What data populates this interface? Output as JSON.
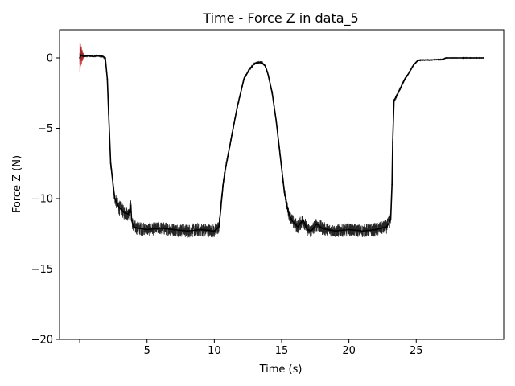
{
  "chart_data": {
    "type": "line",
    "title": "Time - Force Z in data_5",
    "xlabel": "Time (s)",
    "ylabel": "Force Z (N)",
    "xlim": [
      -1.5,
      31.5
    ],
    "ylim": [
      -20,
      2
    ],
    "xticks": [
      0,
      5,
      10,
      15,
      20,
      25
    ],
    "xtick_labels": [
      "",
      "5",
      "10",
      "15",
      "20",
      "25"
    ],
    "yticks": [
      0,
      -5,
      -10,
      -15,
      -20
    ],
    "ytick_labels": [
      "0",
      "−5",
      "−10",
      "−15",
      "−20"
    ],
    "grid": false,
    "series": [
      {
        "color": "#000000",
        "marker_color": "#d62728",
        "x": [
          0.0,
          0.1,
          0.3,
          0.6,
          1.0,
          1.4,
          1.7,
          1.9,
          2.05,
          2.15,
          2.3,
          2.6,
          2.9,
          3.3,
          3.6,
          3.8,
          3.85,
          4.0,
          4.3,
          5.0,
          6.0,
          7.0,
          8.0,
          9.0,
          10.0,
          10.35,
          10.5,
          10.65,
          10.8,
          11.0,
          11.3,
          11.7,
          12.2,
          12.6,
          13.0,
          13.4,
          13.6,
          13.8,
          14.0,
          14.3,
          14.6,
          14.9,
          15.2,
          15.5,
          15.8,
          16.2,
          16.6,
          16.9,
          17.2,
          17.6,
          18.0,
          18.4,
          19.0,
          20.0,
          21.0,
          22.0,
          22.8,
          23.1,
          23.2,
          23.25,
          23.35,
          23.5,
          23.8,
          24.1,
          24.5,
          24.8,
          25.1,
          25.3,
          25.6,
          26.0,
          26.5,
          27.0,
          27.2,
          27.6,
          28.5,
          29.0,
          30.0
        ],
        "y": [
          0.0,
          0.2,
          0.1,
          0.15,
          0.1,
          0.15,
          0.1,
          0.0,
          -1.5,
          -4.0,
          -7.5,
          -10.0,
          -10.6,
          -11.0,
          -11.1,
          -10.5,
          -11.5,
          -12.0,
          -12.1,
          -12.2,
          -12.1,
          -12.2,
          -12.3,
          -12.2,
          -12.3,
          -12.0,
          -10.5,
          -9.0,
          -8.0,
          -7.0,
          -5.5,
          -3.5,
          -1.5,
          -0.8,
          -0.4,
          -0.3,
          -0.4,
          -0.6,
          -1.2,
          -2.5,
          -4.5,
          -7.0,
          -9.5,
          -11.0,
          -11.6,
          -12.0,
          -11.5,
          -12.2,
          -12.3,
          -11.8,
          -12.1,
          -12.2,
          -12.3,
          -12.2,
          -12.3,
          -12.2,
          -12.0,
          -11.5,
          -9.0,
          -6.0,
          -3.0,
          -2.8,
          -2.2,
          -1.6,
          -1.0,
          -0.5,
          -0.2,
          -0.15,
          -0.15,
          -0.15,
          -0.12,
          -0.1,
          0.0,
          0.0,
          0.0,
          0.0,
          0.0
        ],
        "noise": [
          2.0,
          1.4,
          0.15,
          0.12,
          0.12,
          0.12,
          0.2,
          0.3,
          0.4,
          0.5,
          0.6,
          0.8,
          1.0,
          0.9,
          0.9,
          0.9,
          0.9,
          0.9,
          0.9,
          0.85,
          0.85,
          0.85,
          0.9,
          0.9,
          0.9,
          0.9,
          0.8,
          0.6,
          0.5,
          0.4,
          0.35,
          0.3,
          0.25,
          0.2,
          0.2,
          0.2,
          0.2,
          0.25,
          0.3,
          0.35,
          0.4,
          0.5,
          0.6,
          0.7,
          0.9,
          0.9,
          0.9,
          0.9,
          0.9,
          0.9,
          0.9,
          0.85,
          0.85,
          0.85,
          0.85,
          0.9,
          0.9,
          0.9,
          0.7,
          0.5,
          0.3,
          0.3,
          0.25,
          0.2,
          0.15,
          0.12,
          0.1,
          0.08,
          0.06,
          0.05,
          0.05,
          0.04,
          0.03,
          0.03,
          0.03,
          0.03,
          0.03
        ]
      }
    ]
  }
}
